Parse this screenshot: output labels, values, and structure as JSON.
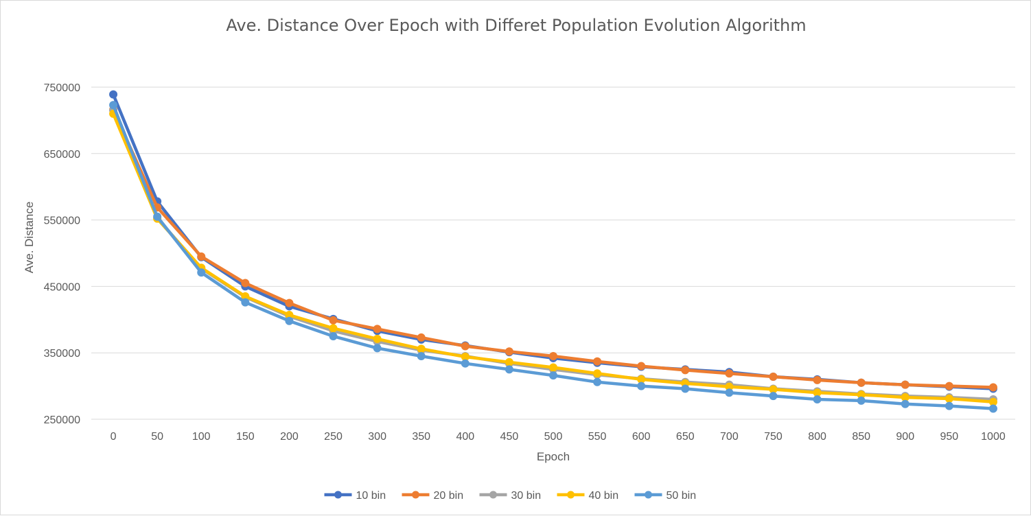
{
  "chart_data": {
    "type": "line",
    "title": "Ave. Distance Over Epoch with Differet Population Evolution Algorithm",
    "xlabel": "Epoch",
    "ylabel": "Ave. Distance",
    "categories": [
      "0",
      "50",
      "100",
      "150",
      "200",
      "250",
      "300",
      "350",
      "400",
      "450",
      "500",
      "550",
      "600",
      "650",
      "700",
      "750",
      "800",
      "850",
      "900",
      "950",
      "1000"
    ],
    "y_ticks": [
      "750000",
      "650000",
      "550000",
      "450000",
      "350000",
      "250000"
    ],
    "ylim": [
      250000,
      750000
    ],
    "grid": "horizontal",
    "legend_position": "bottom",
    "series": [
      {
        "name": "10 bin",
        "color": "#4472c4",
        "values": [
          739000,
          578000,
          494000,
          450000,
          420000,
          401000,
          383000,
          370000,
          361000,
          351000,
          342000,
          335000,
          329000,
          325000,
          321000,
          314000,
          310000,
          305000,
          302000,
          299000,
          296000
        ]
      },
      {
        "name": "20 bin",
        "color": "#ed7d31",
        "values": [
          716000,
          569000,
          495000,
          455000,
          425000,
          399000,
          386000,
          373000,
          360000,
          352000,
          345000,
          337000,
          330000,
          324000,
          319000,
          314000,
          309000,
          305000,
          302000,
          300000,
          298000
        ]
      },
      {
        "name": "30 bin",
        "color": "#a5a5a5",
        "values": [
          715000,
          553000,
          477000,
          434000,
          405000,
          383000,
          367000,
          354000,
          345000,
          334000,
          325000,
          317000,
          311000,
          306000,
          302000,
          296000,
          292000,
          288000,
          285000,
          283000,
          280000
        ]
      },
      {
        "name": "40 bin",
        "color": "#ffc000",
        "values": [
          710000,
          552000,
          478000,
          435000,
          407000,
          387000,
          371000,
          356000,
          344000,
          336000,
          328000,
          319000,
          310000,
          304000,
          299000,
          295000,
          290000,
          287000,
          283000,
          281000,
          276000
        ]
      },
      {
        "name": "50 bin",
        "color": "#5b9bd5",
        "values": [
          723000,
          555000,
          471000,
          426000,
          398000,
          375000,
          357000,
          345000,
          334000,
          325000,
          316000,
          306000,
          300000,
          296000,
          290000,
          285000,
          280000,
          278000,
          273000,
          270000,
          266000
        ]
      }
    ]
  }
}
